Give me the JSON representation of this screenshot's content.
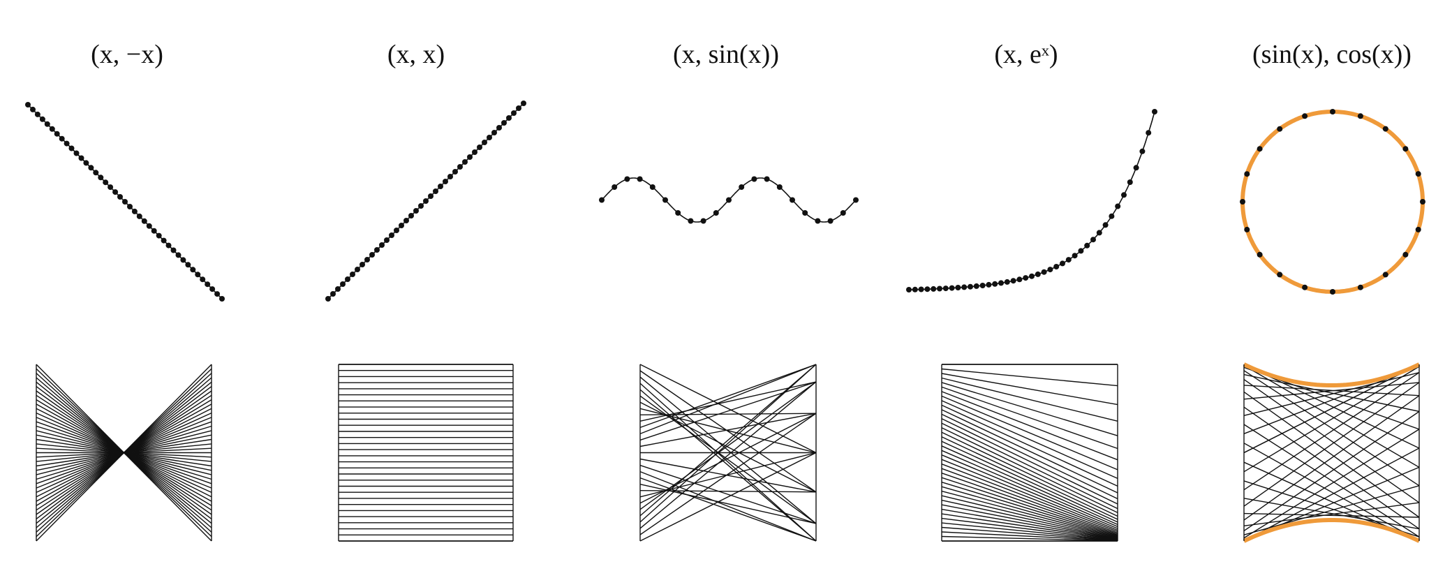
{
  "figure": {
    "panels": [
      {
        "title": "(x, −x)",
        "function": "neg",
        "curve_domain": [
          -1,
          1
        ],
        "scatter_domain": [
          -1,
          1
        ],
        "point_count": 41,
        "line_count": 41,
        "show_circle": false
      },
      {
        "title": "(x, x)",
        "function": "id",
        "curve_domain": [
          -1,
          1
        ],
        "scatter_domain": [
          -1,
          1
        ],
        "point_count": 41,
        "line_count": 30,
        "show_circle": false
      },
      {
        "title": "(x, sin(x))",
        "function": "sin",
        "curve_domain": [
          -6.283,
          6.283
        ],
        "scatter_domain": [
          -6.283,
          6.283
        ],
        "point_count": 21,
        "line_count": 29,
        "show_circle": false
      },
      {
        "title": "(x, eˣ)",
        "function": "exp",
        "curve_domain": [
          -4,
          1
        ],
        "scatter_domain": [
          -4,
          1
        ],
        "point_count": 41,
        "line_count": 40,
        "show_circle": false
      },
      {
        "title": "(sin(x), cos(x))",
        "function": "circle",
        "curve_domain": [
          0,
          6.283
        ],
        "scatter_domain": [
          0,
          6.283
        ],
        "point_count": 20,
        "line_count": 30,
        "show_circle": true
      }
    ],
    "colors": {
      "ink": "#111111",
      "accent": "#ef9a3a"
    }
  }
}
